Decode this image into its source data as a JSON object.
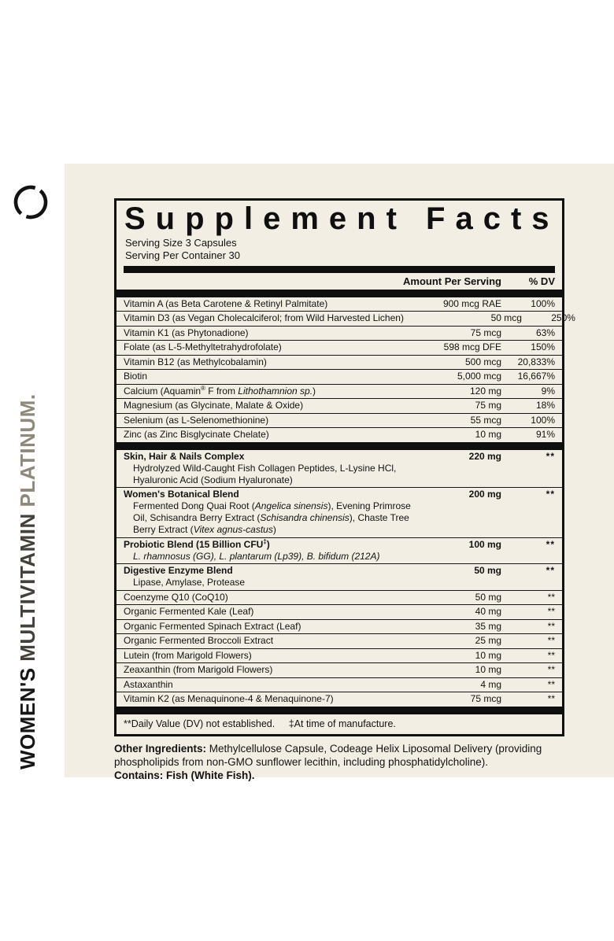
{
  "colors": {
    "panel_bg": "#f3eee3",
    "ink": "#121212",
    "brand_women": "#161616",
    "brand_multivitamin": "#44413b",
    "brand_platinum": "#8f897b"
  },
  "brand": {
    "logo_icon": "codeage-broken-circle-logo",
    "vertical_label": {
      "women": "WOMEN'S",
      "multivitamin": " MULTIVITAMIN ",
      "platinum": "PLATINUM."
    }
  },
  "facts": {
    "title": "Supplement Facts",
    "serving_size": "Serving Size 3 Capsules",
    "servings_per_container": "Serving Per Container 30",
    "columns": {
      "amount": "Amount Per Serving",
      "dv": "% DV"
    },
    "rows": [
      {
        "name": [
          {
            "t": "Vitamin A (as Beta Carotene & Retinyl Palmitate)"
          }
        ],
        "amount": "900 mcg RAE",
        "dv": "100%"
      },
      {
        "name": [
          {
            "t": "Vitamin D3 (as Vegan Cholecalciferol; from Wild Harvested Lichen)"
          }
        ],
        "amount": "50 mcg",
        "dv": "250%"
      },
      {
        "name": [
          {
            "t": "Vitamin K1 (as Phytonadione)"
          }
        ],
        "amount": "75 mcg",
        "dv": "63%"
      },
      {
        "name": [
          {
            "t": "Folate (as L-5-Methyltetrahydrofolate)"
          }
        ],
        "amount": "598 mcg DFE",
        "dv": "150%"
      },
      {
        "name": [
          {
            "t": "Vitamin B12 (as Methylcobalamin)"
          }
        ],
        "amount": "500 mcg",
        "dv": "20,833%"
      },
      {
        "name": [
          {
            "t": "Biotin"
          }
        ],
        "amount": "5,000 mcg",
        "dv": "16,667%"
      },
      {
        "name": [
          {
            "t": "Calcium (Aquamin"
          },
          {
            "t": "®",
            "sup": true
          },
          {
            "t": " F from "
          },
          {
            "t": "Lithothamnion sp.",
            "i": true
          },
          {
            "t": ")"
          }
        ],
        "amount": "120 mg",
        "dv": "9%"
      },
      {
        "name": [
          {
            "t": "Magnesium (as Glycinate, Malate & Oxide)"
          }
        ],
        "amount": "75 mg",
        "dv": "18%"
      },
      {
        "name": [
          {
            "t": "Selenium (as L-Selenomethionine)"
          }
        ],
        "amount": "55 mcg",
        "dv": "100%"
      },
      {
        "name": [
          {
            "t": "Zinc (as Zinc Bisglycinate Chelate)"
          }
        ],
        "amount": "10 mg",
        "dv": "91%"
      },
      {
        "divider_before": true,
        "bold": true,
        "name": [
          {
            "t": "Skin, Hair & Nails Complex"
          }
        ],
        "amount": "220 mg",
        "dv": "**",
        "sub": [
          [
            {
              "t": "Hydrolyzed Wild-Caught Fish Collagen Peptides, L-Lysine HCl,"
            }
          ],
          [
            {
              "t": "Hyaluronic Acid (Sodium Hyaluronate)"
            }
          ]
        ]
      },
      {
        "bold": true,
        "name": [
          {
            "t": "Women's Botanical Blend"
          }
        ],
        "amount": "200 mg",
        "dv": "**",
        "sub": [
          [
            {
              "t": "Fermented Dong Quai Root ("
            },
            {
              "t": "Angelica sinensis",
              "i": true
            },
            {
              "t": "), Evening Primrose"
            }
          ],
          [
            {
              "t": "Oil, Schisandra Berry Extract ("
            },
            {
              "t": "Schisandra chinensis",
              "i": true
            },
            {
              "t": "), Chaste Tree"
            }
          ],
          [
            {
              "t": "Berry Extract ("
            },
            {
              "t": "Vitex agnus-castus",
              "i": true
            },
            {
              "t": ")"
            }
          ]
        ]
      },
      {
        "bold": true,
        "name": [
          {
            "t": "Probiotic Blend (15 Billion CFU"
          },
          {
            "t": "‡",
            "sup": true
          },
          {
            "t": ")"
          }
        ],
        "amount": "100 mg",
        "dv": "**",
        "sub": [
          [
            {
              "t": "L. rhamnosus (GG), L. plantarum (Lp39), B. bifidum (212A)",
              "i": true
            }
          ]
        ]
      },
      {
        "bold": true,
        "name": [
          {
            "t": "Digestive Enzyme Blend"
          }
        ],
        "amount": "50 mg",
        "dv": "**",
        "sub": [
          [
            {
              "t": "Lipase, Amylase, Protease"
            }
          ]
        ]
      },
      {
        "name": [
          {
            "t": "Coenzyme Q10 (CoQ10)"
          }
        ],
        "amount": "50 mg",
        "dv": "**"
      },
      {
        "name": [
          {
            "t": "Organic Fermented Kale (Leaf)"
          }
        ],
        "amount": "40 mg",
        "dv": "**"
      },
      {
        "name": [
          {
            "t": "Organic Fermented Spinach Extract (Leaf)"
          }
        ],
        "amount": "35 mg",
        "dv": "**"
      },
      {
        "name": [
          {
            "t": "Organic Fermented Broccoli Extract"
          }
        ],
        "amount": "25 mg",
        "dv": "**"
      },
      {
        "name": [
          {
            "t": "Lutein (from Marigold Flowers)"
          }
        ],
        "amount": "10 mg",
        "dv": "**"
      },
      {
        "name": [
          {
            "t": "Zeaxanthin (from Marigold Flowers)"
          }
        ],
        "amount": "10 mg",
        "dv": "**"
      },
      {
        "name": [
          {
            "t": "Astaxanthin"
          }
        ],
        "amount": "4 mg",
        "dv": "**"
      },
      {
        "name": [
          {
            "t": "Vitamin K2 (as Menaquinone-4 & Menaquinone-7)"
          }
        ],
        "amount": "75 mcg",
        "dv": "**"
      }
    ],
    "footnotes": {
      "dv_note": "**Daily Value (DV) not established.",
      "manufacture_note": "‡At time of manufacture."
    }
  },
  "other_ingredients": {
    "label": "Other Ingredients:",
    "text": " Methylcellulose Capsule, Codeage Helix Liposomal Delivery (providing phospholipids from non-GMO sunflower lecithin, including phosphatidylcholine)."
  },
  "contains": "Contains: Fish (White Fish)."
}
